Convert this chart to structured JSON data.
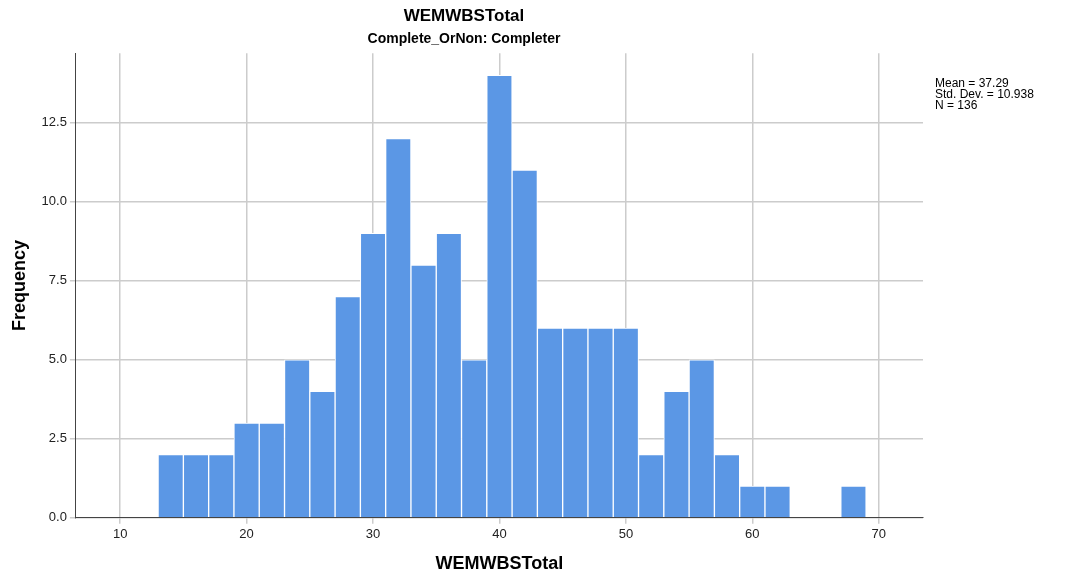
{
  "chart_data": {
    "type": "histogram",
    "title": "WEMWBSTotal",
    "subtitle": "Complete_OrNon: Completer",
    "xlabel": "WEMWBSTotal",
    "ylabel": "Frequency",
    "bins": [
      13,
      15,
      17,
      19,
      21,
      23,
      25,
      27,
      29,
      31,
      33,
      35,
      37,
      39,
      41,
      43,
      45,
      47,
      49,
      51,
      53,
      55,
      57,
      59,
      61,
      63,
      65,
      67,
      69
    ],
    "values": [
      2,
      2,
      2,
      3,
      3,
      5,
      4,
      7,
      9,
      12,
      8,
      9,
      5,
      14,
      11,
      6,
      6,
      6,
      6,
      2,
      4,
      5,
      2,
      1,
      1,
      0,
      0,
      1
    ],
    "color": "#5b97e5",
    "xlim": [
      6.5,
      73.5
    ],
    "xticks": [
      10,
      20,
      30,
      40,
      50,
      60,
      70
    ],
    "ylim": [
      0,
      14.7
    ],
    "yticks": [
      {
        "value": 0,
        "label": "0.0"
      },
      {
        "value": 2.5,
        "label": "2.5"
      },
      {
        "value": 5,
        "label": "5.0"
      },
      {
        "value": 7.5,
        "label": "7.5"
      },
      {
        "value": 10,
        "label": "10.0"
      },
      {
        "value": 12.5,
        "label": "12.5"
      }
    ],
    "grid": true,
    "annotations": [
      "Mean = 37.29",
      "Std. Dev. = 10.938",
      "N = 136"
    ]
  }
}
